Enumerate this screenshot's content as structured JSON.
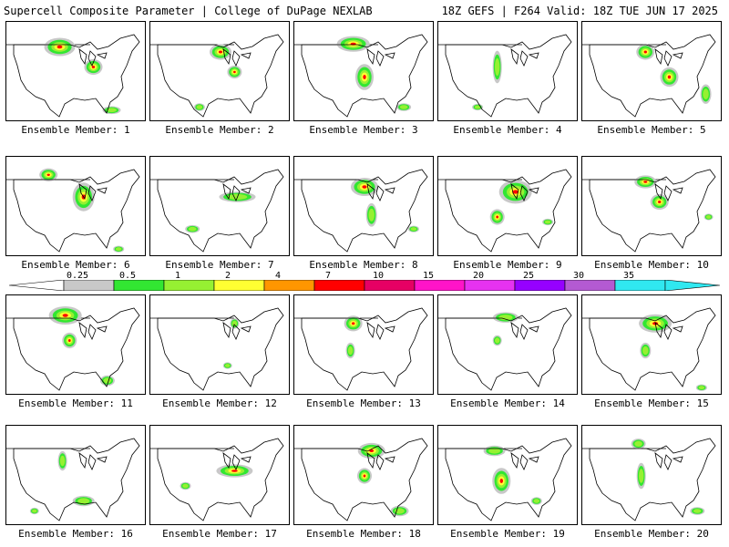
{
  "header": {
    "left": "Supercell Composite Parameter | College of DuPage NEXLAB",
    "right": "18Z GEFS | F264 Valid: 18Z TUE JUN 17 2025"
  },
  "members": [
    {
      "label": "Ensemble Member: 1",
      "blobs": [
        [
          0.38,
          0.25,
          0.17,
          0.14
        ],
        [
          0.62,
          0.45,
          0.1,
          0.12
        ],
        [
          0.75,
          0.88,
          0.1,
          0.06
        ]
      ]
    },
    {
      "label": "Ensemble Member: 2",
      "blobs": [
        [
          0.5,
          0.3,
          0.12,
          0.12
        ],
        [
          0.6,
          0.5,
          0.08,
          0.1
        ],
        [
          0.35,
          0.85,
          0.06,
          0.06
        ]
      ]
    },
    {
      "label": "Ensemble Member: 3",
      "blobs": [
        [
          0.42,
          0.22,
          0.18,
          0.12
        ],
        [
          0.5,
          0.55,
          0.1,
          0.2
        ],
        [
          0.78,
          0.85,
          0.08,
          0.06
        ]
      ]
    },
    {
      "label": "Ensemble Member: 4",
      "blobs": [
        [
          0.42,
          0.45,
          0.05,
          0.25
        ],
        [
          0.28,
          0.85,
          0.06,
          0.05
        ]
      ]
    },
    {
      "label": "Ensemble Member: 5",
      "blobs": [
        [
          0.45,
          0.3,
          0.1,
          0.12
        ],
        [
          0.62,
          0.55,
          0.1,
          0.15
        ],
        [
          0.88,
          0.72,
          0.06,
          0.15
        ]
      ]
    },
    {
      "label": "Ensemble Member: 6",
      "blobs": [
        [
          0.3,
          0.18,
          0.1,
          0.1
        ],
        [
          0.55,
          0.4,
          0.12,
          0.22
        ],
        [
          0.8,
          0.92,
          0.06,
          0.05
        ]
      ]
    },
    {
      "label": "Ensemble Member: 7",
      "blobs": [
        [
          0.62,
          0.4,
          0.2,
          0.08
        ],
        [
          0.3,
          0.72,
          0.08,
          0.06
        ]
      ]
    },
    {
      "label": "Ensemble Member: 8",
      "blobs": [
        [
          0.5,
          0.3,
          0.15,
          0.14
        ],
        [
          0.55,
          0.58,
          0.06,
          0.18
        ],
        [
          0.85,
          0.72,
          0.06,
          0.05
        ]
      ]
    },
    {
      "label": "Ensemble Member: 9",
      "blobs": [
        [
          0.55,
          0.35,
          0.18,
          0.18
        ],
        [
          0.42,
          0.6,
          0.08,
          0.12
        ],
        [
          0.78,
          0.65,
          0.06,
          0.05
        ]
      ]
    },
    {
      "label": "Ensemble Member: 10",
      "blobs": [
        [
          0.45,
          0.25,
          0.12,
          0.1
        ],
        [
          0.55,
          0.45,
          0.1,
          0.12
        ],
        [
          0.9,
          0.6,
          0.05,
          0.05
        ]
      ]
    },
    {
      "label": "Ensemble Member: 11",
      "blobs": [
        [
          0.42,
          0.2,
          0.18,
          0.14
        ],
        [
          0.45,
          0.45,
          0.08,
          0.12
        ],
        [
          0.72,
          0.85,
          0.08,
          0.08
        ]
      ]
    },
    {
      "label": "Ensemble Member: 12",
      "blobs": [
        [
          0.6,
          0.28,
          0.05,
          0.08
        ],
        [
          0.55,
          0.7,
          0.05,
          0.05
        ]
      ]
    },
    {
      "label": "Ensemble Member: 13",
      "blobs": [
        [
          0.42,
          0.28,
          0.1,
          0.12
        ],
        [
          0.4,
          0.55,
          0.05,
          0.12
        ]
      ]
    },
    {
      "label": "Ensemble Member: 14",
      "blobs": [
        [
          0.48,
          0.22,
          0.14,
          0.08
        ],
        [
          0.42,
          0.45,
          0.05,
          0.08
        ]
      ]
    },
    {
      "label": "Ensemble Member: 15",
      "blobs": [
        [
          0.52,
          0.28,
          0.18,
          0.14
        ],
        [
          0.45,
          0.55,
          0.06,
          0.12
        ],
        [
          0.85,
          0.92,
          0.06,
          0.05
        ]
      ]
    },
    {
      "label": "Ensemble Member: 16",
      "blobs": [
        [
          0.4,
          0.35,
          0.05,
          0.15
        ],
        [
          0.55,
          0.75,
          0.12,
          0.08
        ],
        [
          0.2,
          0.85,
          0.05,
          0.05
        ]
      ]
    },
    {
      "label": "Ensemble Member: 17",
      "blobs": [
        [
          0.6,
          0.45,
          0.2,
          0.1
        ],
        [
          0.25,
          0.6,
          0.06,
          0.06
        ]
      ]
    },
    {
      "label": "Ensemble Member: 18",
      "blobs": [
        [
          0.55,
          0.25,
          0.15,
          0.12
        ],
        [
          0.5,
          0.5,
          0.08,
          0.12
        ],
        [
          0.75,
          0.85,
          0.1,
          0.08
        ]
      ]
    },
    {
      "label": "Ensemble Member: 19",
      "blobs": [
        [
          0.4,
          0.25,
          0.12,
          0.08
        ],
        [
          0.45,
          0.55,
          0.1,
          0.2
        ],
        [
          0.7,
          0.75,
          0.06,
          0.06
        ]
      ]
    },
    {
      "label": "Ensemble Member: 20",
      "blobs": [
        [
          0.4,
          0.18,
          0.08,
          0.08
        ],
        [
          0.42,
          0.5,
          0.05,
          0.2
        ],
        [
          0.82,
          0.85,
          0.08,
          0.06
        ]
      ]
    }
  ],
  "colorbar": {
    "labels": [
      "0.25",
      "0.5",
      "1",
      "2",
      "4",
      "7",
      "10",
      "15",
      "20",
      "25",
      "30",
      "35"
    ],
    "colors": [
      "#c8c8c8",
      "#32e632",
      "#96f032",
      "#ffff32",
      "#ff9600",
      "#ff0000",
      "#e60064",
      "#ff14c8",
      "#e632f0",
      "#9600ff",
      "#b45ad2",
      "#30e8f0"
    ]
  }
}
